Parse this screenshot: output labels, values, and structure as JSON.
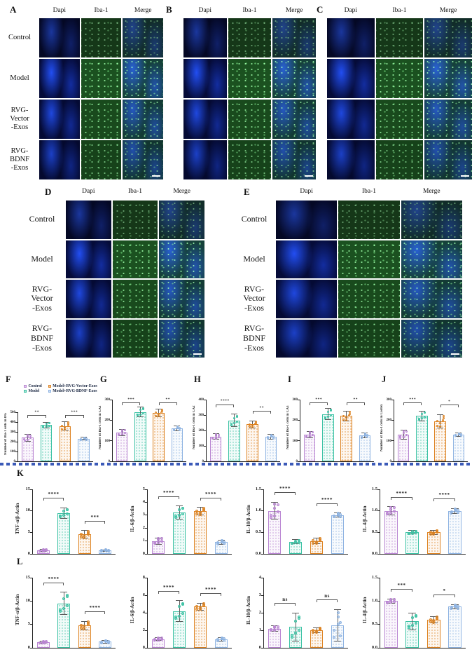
{
  "groups": [
    {
      "name": "Control",
      "color": "#c9a3da",
      "stroke": "#b985d2"
    },
    {
      "name": "Model",
      "color": "#63cdb5",
      "stroke": "#3cc2a4"
    },
    {
      "name": "Model+RVG-Vector-Exos",
      "color": "#e6953f",
      "stroke": "#dd8322"
    },
    {
      "name": "Model+RVG-BDNF-Exos",
      "color": "#adc8ea",
      "stroke": "#8fb4e2"
    }
  ],
  "legend": {
    "items": [
      "Control",
      "Model",
      "Model+RVG-Vector-Exos",
      "Model+RVG-BDNF-Exos"
    ]
  },
  "micro_panels": [
    {
      "letter": "A",
      "columns": [
        "Dapi",
        "Iba-1",
        "Merge"
      ],
      "row_labels": [
        "Control",
        "Model",
        "RVG-\nVector\n-Exos",
        "RVG-\nBDNF\n-Exos"
      ],
      "show_row_labels": true,
      "has_scale_bar": true
    },
    {
      "letter": "B",
      "columns": [
        "Dapi",
        "Iba-1",
        "Merge"
      ],
      "row_labels": [
        "Control",
        "Model",
        "RVG-Vector-Exos",
        "RVG-BDNF-Exos"
      ],
      "show_row_labels": false,
      "has_scale_bar": true
    },
    {
      "letter": "C",
      "columns": [
        "Dapi",
        "Iba-1",
        "Merge"
      ],
      "row_labels": [
        "Control",
        "Model",
        "RVG-Vector-Exos",
        "RVG-BDNF-Exos"
      ],
      "show_row_labels": false,
      "has_scale_bar": true
    },
    {
      "letter": "D",
      "columns": [
        "Dapi",
        "Iba-1",
        "Merge"
      ],
      "row_labels": [
        "Control",
        "Model",
        "RVG-\nVector\n-Exos",
        "RVG-\nBDNF\n-Exos"
      ],
      "show_row_labels": true,
      "has_scale_bar": true
    },
    {
      "letter": "E",
      "columns": [
        "Dapi",
        "Iba-1",
        "Merge"
      ],
      "row_labels": [
        "Control",
        "Model",
        "RVG-\nVector\n-Exos",
        "RVG-\nBDNF\n-Exos"
      ],
      "show_row_labels": true,
      "has_scale_bar": true
    }
  ],
  "chart_data": [
    {
      "key": "F",
      "panel": "F",
      "type": "bar",
      "ylabel": "Number of Iba-1 cells in DG",
      "categories": [
        "Control",
        "Model",
        "Model+RVG-Vector-Exos",
        "Model+RVG-BDNF-Exos"
      ],
      "values": [
        240,
        370,
        360,
        230
      ],
      "err": [
        35,
        30,
        45,
        15
      ],
      "ylim": [
        0,
        500
      ],
      "yticks": [
        "0",
        "100",
        "200",
        "300",
        "400",
        "500"
      ],
      "sig": [
        {
          "from": 0,
          "to": 1,
          "label": "**"
        },
        {
          "from": 2,
          "to": 3,
          "label": "***"
        }
      ],
      "legend_position": "top",
      "show_panel_letter": true
    },
    {
      "key": "G",
      "panel": "G",
      "type": "bar",
      "ylabel": "Number of Iba-1 cells in CA1",
      "categories": [
        "Control",
        "Model",
        "Model+RVG-Vector-Exos",
        "Model+RVG-BDNF-Exos"
      ],
      "values": [
        140,
        240,
        235,
        160
      ],
      "err": [
        15,
        25,
        20,
        12
      ],
      "ylim": [
        0,
        300
      ],
      "yticks": [
        "0",
        "100",
        "200",
        "300"
      ],
      "sig": [
        {
          "from": 0,
          "to": 1,
          "label": "***"
        },
        {
          "from": 2,
          "to": 3,
          "label": "**"
        }
      ],
      "show_panel_letter": true
    },
    {
      "key": "H",
      "panel": "H",
      "type": "bar",
      "ylabel": "Number of Iba-1 cells in CA2",
      "categories": [
        "Control",
        "Model",
        "Model+RVG-Vector-Exos",
        "Model+RVG-BDNF-Exos"
      ],
      "values": [
        160,
        265,
        240,
        160
      ],
      "err": [
        18,
        40,
        22,
        15
      ],
      "ylim": [
        0,
        400
      ],
      "yticks": [
        "0",
        "100",
        "200",
        "300",
        "400"
      ],
      "sig": [
        {
          "from": 0,
          "to": 1,
          "label": "****"
        },
        {
          "from": 2,
          "to": 3,
          "label": "**"
        }
      ],
      "show_panel_letter": true
    },
    {
      "key": "I",
      "panel": "I",
      "type": "bar",
      "ylabel": "Number of Iba-1 cells in CA3",
      "categories": [
        "Control",
        "Model",
        "Model+RVG-Vector-Exos",
        "Model+RVG-BDNF-Exos"
      ],
      "values": [
        130,
        230,
        220,
        125
      ],
      "err": [
        15,
        28,
        25,
        12
      ],
      "ylim": [
        0,
        300
      ],
      "yticks": [
        "0",
        "100",
        "200",
        "300"
      ],
      "sig": [
        {
          "from": 0,
          "to": 1,
          "label": "***"
        },
        {
          "from": 2,
          "to": 3,
          "label": "**"
        }
      ],
      "show_panel_letter": true
    },
    {
      "key": "J",
      "panel": "J",
      "type": "bar",
      "ylabel": "Number of Iba-1 cells in Cortex",
      "categories": [
        "Control",
        "Model",
        "Model+RVG-Vector-Exos",
        "Model+RVG-BDNF-Exos"
      ],
      "values": [
        130,
        220,
        195,
        130
      ],
      "err": [
        22,
        25,
        32,
        8
      ],
      "ylim": [
        0,
        300
      ],
      "yticks": [
        "0",
        "100",
        "200",
        "300"
      ],
      "sig": [
        {
          "from": 0,
          "to": 1,
          "label": "***"
        },
        {
          "from": 2,
          "to": 3,
          "label": "*"
        }
      ],
      "show_panel_letter": true
    },
    {
      "key": "K1",
      "panel": "K",
      "type": "bar",
      "ylabel": "TNF-α/β-Actin",
      "categories": [
        "Control",
        "Model",
        "Model+RVG-Vector-Exos",
        "Model+RVG-BDNF-Exos"
      ],
      "values": [
        0.8,
        9.5,
        4.5,
        0.8
      ],
      "err": [
        0.2,
        1.2,
        0.9,
        0.15
      ],
      "ylim": [
        0,
        15
      ],
      "yticks": [
        "0",
        "5",
        "10",
        "15"
      ],
      "sig": [
        {
          "from": 0,
          "to": 1,
          "label": "****"
        },
        {
          "from": 2,
          "to": 3,
          "label": "***"
        }
      ],
      "show_panel_letter": true
    },
    {
      "key": "K2",
      "panel": "K",
      "type": "bar",
      "ylabel": "IL-6/β-Actin",
      "categories": [
        "Control",
        "Model",
        "Model+RVG-Vector-Exos",
        "Model+RVG-BDNF-Exos"
      ],
      "values": [
        1.0,
        3.2,
        3.3,
        0.9
      ],
      "err": [
        0.25,
        0.5,
        0.3,
        0.15
      ],
      "ylim": [
        0,
        5
      ],
      "yticks": [
        "0",
        "1",
        "2",
        "3",
        "4",
        "5"
      ],
      "sig": [
        {
          "from": 0,
          "to": 1,
          "label": "****"
        },
        {
          "from": 2,
          "to": 3,
          "label": "****"
        }
      ],
      "show_panel_letter": false
    },
    {
      "key": "K3",
      "panel": "K",
      "type": "bar",
      "ylabel": "IL-10/β-Actin",
      "categories": [
        "Control",
        "Model",
        "Model+RVG-Vector-Exos",
        "Model+RVG-BDNF-Exos"
      ],
      "values": [
        1.0,
        0.28,
        0.3,
        0.9
      ],
      "err": [
        0.2,
        0.05,
        0.07,
        0.05
      ],
      "ylim": [
        0,
        1.5
      ],
      "yticks": [
        "0.0",
        "0.5",
        "1.0",
        "1.5"
      ],
      "sig": [
        {
          "from": 0,
          "to": 1,
          "label": "****"
        },
        {
          "from": 2,
          "to": 3,
          "label": "****"
        }
      ],
      "show_panel_letter": false
    },
    {
      "key": "K4",
      "panel": "K",
      "type": "bar",
      "ylabel": "IL-4/β-Actin",
      "categories": [
        "Control",
        "Model",
        "Model+RVG-Vector-Exos",
        "Model+RVG-BDNF-Exos"
      ],
      "values": [
        1.0,
        0.5,
        0.5,
        1.0
      ],
      "err": [
        0.1,
        0.04,
        0.05,
        0.06
      ],
      "ylim": [
        0,
        1.5
      ],
      "yticks": [
        "0.0",
        "0.5",
        "1.0",
        "1.5"
      ],
      "sig": [
        {
          "from": 0,
          "to": 1,
          "label": "****"
        },
        {
          "from": 2,
          "to": 3,
          "label": "****"
        }
      ],
      "show_panel_letter": false
    },
    {
      "key": "L1",
      "panel": "L",
      "type": "bar",
      "ylabel": "TNF-α/β-Actin",
      "categories": [
        "Control",
        "Model",
        "Model+RVG-Vector-Exos",
        "Model+RVG-BDNF-Exos"
      ],
      "values": [
        1.2,
        9.5,
        4.8,
        1.3
      ],
      "err": [
        0.25,
        2.4,
        0.9,
        0.3
      ],
      "ylim": [
        0,
        15
      ],
      "yticks": [
        "0",
        "5",
        "10",
        "15"
      ],
      "sig": [
        {
          "from": 0,
          "to": 1,
          "label": "****"
        },
        {
          "from": 2,
          "to": 3,
          "label": "****"
        }
      ],
      "show_panel_letter": true
    },
    {
      "key": "L2",
      "panel": "L",
      "type": "bar",
      "ylabel": "IL-6/β-Actin",
      "categories": [
        "Control",
        "Model",
        "Model+RVG-Vector-Exos",
        "Model+RVG-BDNF-Exos"
      ],
      "values": [
        1.0,
        4.2,
        4.7,
        1.0
      ],
      "err": [
        0.15,
        1.2,
        0.4,
        0.2
      ],
      "ylim": [
        0,
        8
      ],
      "yticks": [
        "0",
        "2",
        "4",
        "6",
        "8"
      ],
      "sig": [
        {
          "from": 0,
          "to": 1,
          "label": "****"
        },
        {
          "from": 2,
          "to": 3,
          "label": "****"
        }
      ],
      "show_panel_letter": false
    },
    {
      "key": "L3",
      "panel": "L",
      "type": "bar",
      "ylabel": "IL-10/β-Actin",
      "categories": [
        "Control",
        "Model",
        "Model+RVG-Vector-Exos",
        "Model+RVG-BDNF-Exos"
      ],
      "values": [
        1.1,
        1.2,
        1.0,
        1.3
      ],
      "err": [
        0.15,
        0.8,
        0.15,
        0.9
      ],
      "ylim": [
        0,
        4
      ],
      "yticks": [
        "0",
        "1",
        "2",
        "3",
        "4"
      ],
      "sig": [
        {
          "from": 0,
          "to": 1,
          "label": "ns"
        },
        {
          "from": 2,
          "to": 3,
          "label": "ns"
        }
      ],
      "show_panel_letter": false
    },
    {
      "key": "L4",
      "panel": "L",
      "type": "bar",
      "ylabel": "IL-4/β-Actin",
      "categories": [
        "Control",
        "Model",
        "Model+RVG-Vector-Exos",
        "Model+RVG-BDNF-Exos"
      ],
      "values": [
        1.0,
        0.57,
        0.6,
        0.88
      ],
      "err": [
        0.05,
        0.18,
        0.07,
        0.05
      ],
      "ylim": [
        0,
        1.5
      ],
      "yticks": [
        "0.0",
        "0.5",
        "1.0",
        "1.5"
      ],
      "sig": [
        {
          "from": 0,
          "to": 1,
          "label": "***"
        },
        {
          "from": 2,
          "to": 3,
          "label": "*"
        }
      ],
      "show_panel_letter": false
    }
  ]
}
